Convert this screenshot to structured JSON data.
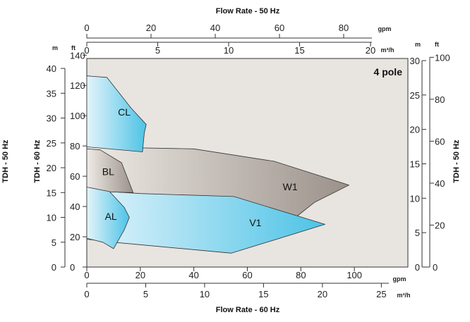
{
  "chart_data": {
    "type": "area",
    "pole_label": "4 pole",
    "colors": {
      "plot_bg": "#e8e4e0",
      "blue_light": "#e4f4fb",
      "blue_dark": "#4dc3e6",
      "gray_light": "#efebe6",
      "gray_dark": "#9b918a",
      "outline": "#333333"
    },
    "x_bottom": {
      "title": "Flow Rate - 60 Hz",
      "gpm": {
        "unit": "gpm",
        "ticks": [
          0,
          20,
          40,
          60,
          80,
          100
        ]
      },
      "m3h": {
        "unit": "m³/h",
        "ticks": [
          0,
          5,
          10,
          15,
          20,
          25
        ]
      }
    },
    "x_top": {
      "title": "Flow Rate - 50 Hz",
      "gpm": {
        "unit": "gpm",
        "ticks": [
          0,
          20,
          40,
          60,
          80
        ]
      },
      "m3h": {
        "unit": "m³/h",
        "ticks": [
          0,
          5,
          10,
          15,
          20
        ]
      }
    },
    "y_left": {
      "title": "TDH - 60 Hz",
      "m": {
        "unit": "m",
        "ticks": [
          0,
          5,
          10,
          15,
          20,
          25,
          30,
          35,
          40
        ]
      },
      "ft": {
        "unit": "ft",
        "ticks": [
          0,
          20,
          40,
          60,
          80,
          100,
          120,
          140
        ]
      }
    },
    "y_right": {
      "title": "TDH - 50 Hz",
      "m": {
        "unit": "m",
        "ticks": [
          0,
          5,
          10,
          15,
          20,
          25,
          30
        ]
      },
      "ft": {
        "unit": "ft",
        "ticks": [
          20,
          40,
          60,
          80,
          100
        ]
      }
    },
    "ranges": {
      "x_gpm_60hz": [
        0,
        120
      ],
      "y_m_60hz": [
        0,
        42
      ]
    },
    "series": [
      {
        "name": "W1",
        "fill": "gray",
        "points": [
          [
            0,
            24.2
          ],
          [
            40,
            23.8
          ],
          [
            70,
            21.3
          ],
          [
            98,
            16.5
          ],
          [
            85,
            13
          ],
          [
            78,
            10
          ],
          [
            25,
            7.6
          ],
          [
            10,
            19
          ],
          [
            0,
            15.5
          ]
        ]
      },
      {
        "name": "V1",
        "fill": "blue",
        "points": [
          [
            0,
            15.5
          ],
          [
            20,
            14.8
          ],
          [
            55,
            14.2
          ],
          [
            89,
            8.6
          ],
          [
            54,
            2.8
          ],
          [
            10,
            5
          ],
          [
            0,
            5.6
          ]
        ]
      },
      {
        "name": "CL",
        "fill": "blue",
        "points": [
          [
            0,
            38.5
          ],
          [
            7.5,
            38.2
          ],
          [
            16.6,
            32
          ],
          [
            22.2,
            28.7
          ],
          [
            21.5,
            27
          ],
          [
            20.8,
            23.2
          ],
          [
            0,
            24.2
          ]
        ]
      },
      {
        "name": "BL",
        "fill": "gray",
        "points": [
          [
            0,
            23.8
          ],
          [
            5,
            23.6
          ],
          [
            13,
            21
          ],
          [
            17.3,
            15
          ],
          [
            16.6,
            15
          ],
          [
            5,
            15.2
          ],
          [
            0,
            15.6
          ]
        ]
      },
      {
        "name": "AL",
        "fill": "blue",
        "points": [
          [
            0,
            16.1
          ],
          [
            8.5,
            15.2
          ],
          [
            14,
            12
          ],
          [
            15.9,
            10
          ],
          [
            14,
            7.5
          ],
          [
            10,
            3.7
          ],
          [
            6,
            5
          ],
          [
            0,
            5.8
          ]
        ]
      }
    ],
    "label_positions": [
      {
        "name": "CL",
        "x": 14,
        "y": 30.5
      },
      {
        "name": "BL",
        "x": 8,
        "y": 18.5
      },
      {
        "name": "W1",
        "x": 76,
        "y": 15.5
      },
      {
        "name": "AL",
        "x": 9,
        "y": 9.5
      },
      {
        "name": "V1",
        "x": 63,
        "y": 8.2
      }
    ]
  }
}
